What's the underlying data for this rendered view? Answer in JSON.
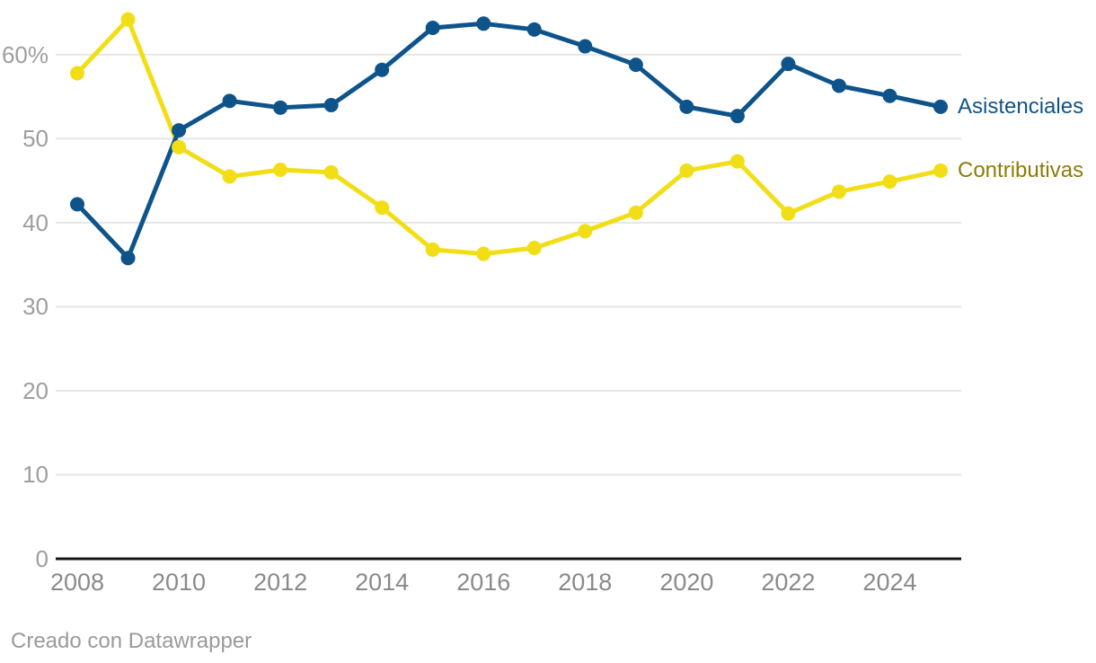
{
  "chart_data": {
    "type": "line",
    "x": [
      2008,
      2009,
      2010,
      2011,
      2012,
      2013,
      2014,
      2015,
      2016,
      2017,
      2018,
      2019,
      2020,
      2021,
      2022,
      2023,
      2024,
      2025
    ],
    "series": [
      {
        "name": "Asistenciales",
        "color": "#0e548b",
        "label_color": "#0e548b",
        "values": [
          42.2,
          35.8,
          51.0,
          54.5,
          53.7,
          54.0,
          58.2,
          63.2,
          63.7,
          63.0,
          61.0,
          58.8,
          53.8,
          52.7,
          58.9,
          56.3,
          55.1,
          53.8
        ]
      },
      {
        "name": "Contributivas",
        "color": "#f2de16",
        "label_color": "#8c7d0a",
        "values": [
          57.8,
          64.2,
          49.0,
          45.5,
          46.3,
          46.0,
          41.8,
          36.8,
          36.3,
          37.0,
          39.0,
          41.2,
          46.2,
          47.3,
          41.1,
          43.7,
          44.9,
          46.2
        ]
      }
    ],
    "yticks": [
      {
        "value": 0,
        "label": "0"
      },
      {
        "value": 10,
        "label": "10"
      },
      {
        "value": 20,
        "label": "20"
      },
      {
        "value": 30,
        "label": "30"
      },
      {
        "value": 40,
        "label": "40"
      },
      {
        "value": 50,
        "label": "50"
      },
      {
        "value": 60,
        "label": "60%"
      }
    ],
    "xticks": [
      2008,
      2010,
      2012,
      2014,
      2016,
      2018,
      2020,
      2022,
      2024
    ],
    "ylim": [
      0,
      66
    ],
    "xlim": [
      2008,
      2025
    ],
    "grid": true,
    "legend_position": "labels-at-line-ends-right"
  },
  "style": {
    "grid_color": "#e6e6e6",
    "axis_color": "#141414",
    "y_tick_color": "#9e9e9e",
    "x_tick_color": "#8a8a8a",
    "background": "#ffffff"
  },
  "attribution": {
    "text": "Creado con Datawrapper",
    "color": "#9a9a9a"
  }
}
